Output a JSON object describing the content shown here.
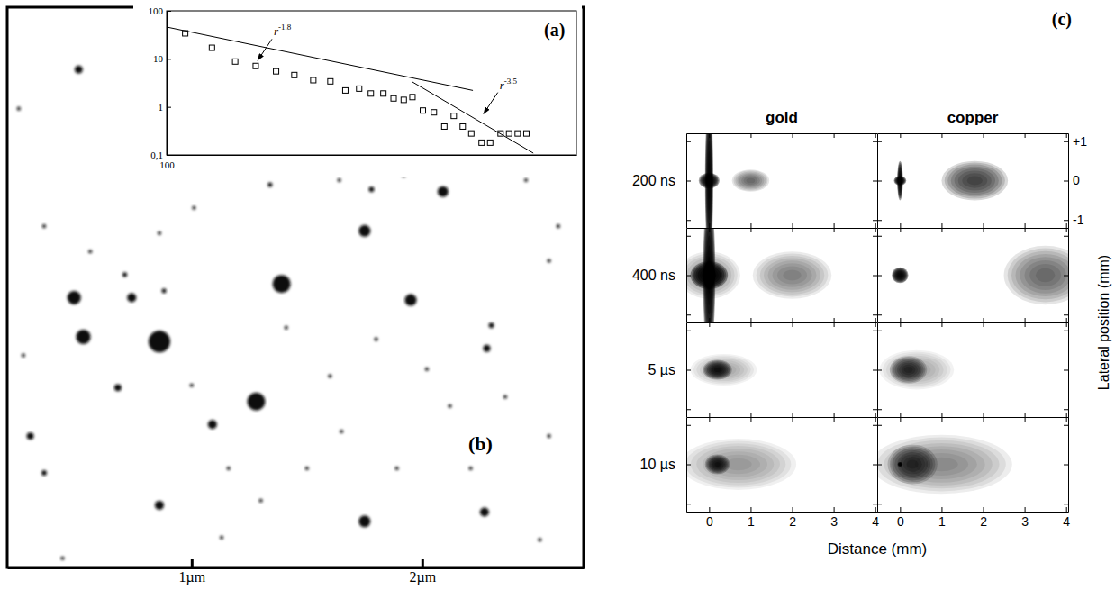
{
  "chart_data": [
    {
      "type": "scatter",
      "title": "(b)",
      "marker": "circle",
      "color": "#111111",
      "tick_labels": "x",
      "xlim": [
        0.2,
        2.7
      ],
      "ylim": [
        0,
        2.43
      ],
      "xticks": [
        {
          "value": 1,
          "label": "1µm"
        },
        {
          "value": 2,
          "label": "2µm"
        }
      ],
      "x": [
        0.51,
        1.39,
        0.49,
        0.53,
        0.86,
        1.28,
        0.74,
        1.75,
        1.95,
        2.09,
        1.75,
        0.86,
        1.09,
        0.68,
        0.3,
        2.27,
        2.28,
        0.36,
        1.78,
        2.3,
        0.88,
        0.71,
        1.0,
        1.41,
        1.6,
        1.8,
        2.02,
        2.12,
        2.21,
        1.5,
        1.3,
        1.13,
        0.44,
        2.51,
        2.55,
        2.59,
        2.45,
        1.92,
        1.64,
        1.34,
        1.01,
        0.86,
        0.56,
        0.36,
        0.27,
        2.36,
        2.55,
        1.89,
        1.65,
        1.16,
        0.25
      ],
      "values": [
        2.16,
        1.23,
        1.17,
        1.0,
        0.98,
        0.72,
        1.17,
        1.46,
        1.16,
        1.63,
        0.2,
        0.27,
        0.62,
        0.78,
        0.57,
        0.24,
        0.95,
        0.41,
        1.64,
        1.05,
        1.2,
        1.27,
        0.79,
        1.04,
        0.83,
        0.99,
        0.86,
        0.7,
        0.43,
        0.43,
        0.29,
        0.13,
        0.04,
        0.12,
        1.33,
        1.48,
        1.68,
        1.7,
        1.68,
        1.66,
        1.56,
        1.45,
        1.37,
        1.48,
        0.92,
        0.74,
        0.57,
        0.43,
        0.59,
        0.43,
        1.99
      ],
      "sizes": [
        0.035,
        0.078,
        0.059,
        0.063,
        0.094,
        0.078,
        0.039,
        0.051,
        0.051,
        0.047,
        0.051,
        0.039,
        0.039,
        0.031,
        0.031,
        0.039,
        0.031,
        0.023,
        0.023,
        0.023,
        0.02,
        0.02,
        0.016,
        0.016,
        0.016,
        0.016,
        0.016,
        0.016,
        0.016,
        0.016,
        0.016,
        0.016,
        0.016,
        0.016,
        0.016,
        0.016,
        0.016,
        0.016,
        0.016,
        0.02,
        0.016,
        0.016,
        0.016,
        0.016,
        0.016,
        0.016,
        0.016,
        0.016,
        0.016,
        0.016,
        0.016
      ]
    },
    {
      "type": "scatter",
      "title": "(a)",
      "log": true,
      "xlim": [
        100,
        1000
      ],
      "ylim": [
        0.1,
        100
      ],
      "xticks": [
        100
      ],
      "yticks": [
        {
          "value": 0.1,
          "label": "0,1"
        },
        1,
        10,
        100
      ],
      "series": [
        {
          "type": "scatter",
          "marker": "square",
          "color": "#000000",
          "x": [
            111,
            129,
            147,
            165,
            185,
            205,
            228,
            251,
            273,
            295,
            315,
            338,
            358,
            379,
            398,
            422,
            449,
            476,
            502,
            528,
            554,
            587,
            616,
            653,
            685,
            719,
            755
          ],
          "values": [
            34,
            17,
            8.8,
            7.1,
            5.5,
            4.6,
            3.6,
            3.4,
            2.2,
            2.4,
            1.9,
            1.9,
            1.5,
            1.4,
            1.6,
            0.84,
            0.77,
            0.39,
            0.65,
            0.39,
            0.28,
            0.18,
            0.18,
            0.28,
            0.28,
            0.28,
            0.28
          ]
        },
        {
          "type": "line",
          "color": "#000000",
          "x": [
            100,
            559
          ],
          "values": [
            46,
            2.2
          ]
        },
        {
          "type": "line",
          "color": "#000000",
          "x": [
            398,
            785
          ],
          "values": [
            3.3,
            0.109
          ]
        }
      ],
      "annotations": [
        {
          "text": "r",
          "exponent": "-1.8",
          "x": 165,
          "y": 8.4
        },
        {
          "text": "r",
          "exponent": "-3.5",
          "x": 587,
          "y": 0.65
        }
      ]
    },
    {
      "type": "contour",
      "title": "(c)",
      "color": "#000000",
      "columns": [
        "gold",
        "copper"
      ],
      "rows": [
        "200 ns",
        "400 ns",
        "5 µs",
        "10 µs"
      ],
      "xlabel": "Distance (mm)",
      "ylabel": "Lateral position (mm)",
      "xlim": [
        -0.55,
        4.05
      ],
      "ylim": [
        -1.2,
        1.2
      ],
      "xticks": [
        0,
        1,
        2,
        3,
        4
      ],
      "yticks": [
        {
          "value": 1,
          "label": "+1"
        },
        0,
        -1
      ],
      "panels": [
        [
          [
            {
              "x": 0,
              "y": 0,
              "rx": 0.1,
              "ry": 2.0,
              "intensity": 1
            },
            {
              "x": 0,
              "y": 0,
              "rx": 0.25,
              "ry": 0.2,
              "intensity": 1
            },
            {
              "x": 1.0,
              "y": 0,
              "rx": 0.45,
              "ry": 0.28,
              "intensity": 0.6
            }
          ],
          [
            {
              "x": 0,
              "y": 0,
              "rx": 0.07,
              "ry": 0.5,
              "intensity": 1
            },
            {
              "x": 0,
              "y": 0,
              "rx": 0.15,
              "ry": 0.12,
              "intensity": 1
            },
            {
              "x": 1.8,
              "y": 0,
              "rx": 0.8,
              "ry": 0.5,
              "intensity": 0.75
            }
          ]
        ],
        [
          [
            {
              "x": 0,
              "y": 0,
              "rx": 0.15,
              "ry": 2.0,
              "intensity": 1
            },
            {
              "x": 0,
              "y": 0,
              "rx": 0.45,
              "ry": 0.35,
              "intensity": 1
            },
            {
              "x": 0,
              "y": 0,
              "rx": 0.75,
              "ry": 0.6,
              "intensity": 0.45
            },
            {
              "x": 2.0,
              "y": 0,
              "rx": 0.95,
              "ry": 0.6,
              "intensity": 0.5
            }
          ],
          [
            {
              "x": 0,
              "y": 0,
              "rx": 0.2,
              "ry": 0.2,
              "intensity": 1
            },
            {
              "x": 3.5,
              "y": 0,
              "rx": 1.0,
              "ry": 0.75,
              "intensity": 0.6
            }
          ]
        ],
        [
          [
            {
              "x": 0.2,
              "y": 0,
              "rx": 0.35,
              "ry": 0.25,
              "intensity": 0.9
            },
            {
              "x": 0.35,
              "y": 0,
              "rx": 0.8,
              "ry": 0.4,
              "intensity": 0.35
            }
          ],
          [
            {
              "x": 0.2,
              "y": 0,
              "rx": 0.45,
              "ry": 0.35,
              "intensity": 0.8
            },
            {
              "x": 0.4,
              "y": 0,
              "rx": 0.9,
              "ry": 0.5,
              "intensity": 0.35
            }
          ]
        ],
        [
          [
            {
              "x": 0.2,
              "y": 0,
              "rx": 0.3,
              "ry": 0.25,
              "intensity": 0.9
            },
            {
              "x": 0.7,
              "y": 0,
              "rx": 1.4,
              "ry": 0.65,
              "intensity": 0.4
            }
          ],
          [
            {
              "x": 0,
              "y": 0,
              "rx": 0.06,
              "ry": 0.06,
              "intensity": 1
            },
            {
              "x": 0.3,
              "y": 0,
              "rx": 0.6,
              "ry": 0.5,
              "intensity": 0.8
            },
            {
              "x": 1.0,
              "y": 0,
              "rx": 1.7,
              "ry": 0.75,
              "intensity": 0.45
            }
          ]
        ]
      ]
    }
  ]
}
